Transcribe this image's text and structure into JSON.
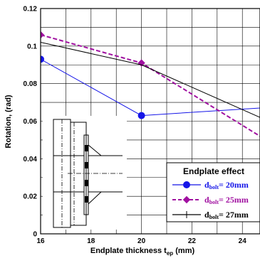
{
  "chart_data": {
    "type": "line",
    "xlabel": "Endplate thickness t",
    "xlabel_subscript": "ep",
    "xlabel_unit": " (mm)",
    "ylabel": "Rotation, (rad)",
    "xlim": [
      16,
      24.7
    ],
    "ylim": [
      0,
      0.12
    ],
    "xticks": [
      "16",
      "18",
      "20",
      "22",
      "24"
    ],
    "yticks": [
      "0",
      "0.02",
      "0.04",
      "0.06",
      "0.08",
      "0.1",
      "0.12"
    ],
    "grid": true,
    "legend": {
      "title": "Endplate effect",
      "placement": "bottom-right"
    },
    "series": [
      {
        "name": "d",
        "name_subscript": "bolt",
        "name_suffix": "= 20mm",
        "color": "#1515e8",
        "marker": "circle",
        "dash": "solid",
        "x": [
          16,
          20,
          24.7
        ],
        "y": [
          0.093,
          0.063,
          0.067
        ]
      },
      {
        "name": "d",
        "name_subscript": "bolt",
        "name_suffix": "= 25mm",
        "color": "#a010a0",
        "marker": "diamond",
        "dash": "dashed",
        "x": [
          16,
          20,
          24.7
        ],
        "y": [
          0.106,
          0.091,
          0.052
        ]
      },
      {
        "name": "d",
        "name_subscript": "bolt",
        "name_suffix": "= 27mm",
        "color": "#000000",
        "marker": "none",
        "dash": "solid",
        "x": [
          16,
          20,
          24.7
        ],
        "y": [
          0.102,
          0.09,
          0.062
        ]
      }
    ]
  }
}
